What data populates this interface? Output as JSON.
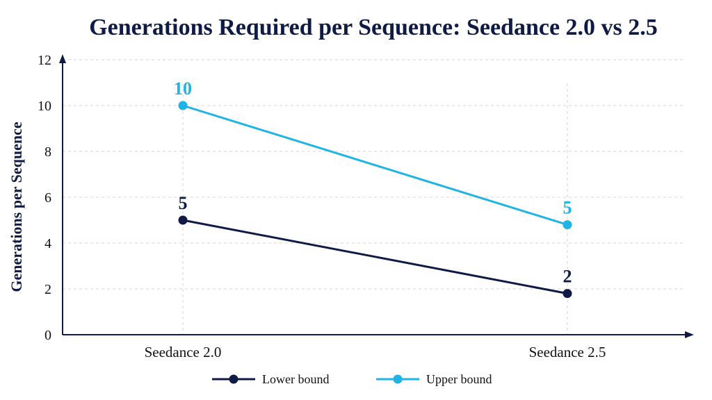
{
  "chart_data": {
    "type": "line",
    "title": "Generations Required per Sequence: Seedance 2.0 vs 2.5",
    "xlabel": "",
    "ylabel": "Generations per Sequence",
    "categories": [
      "Seedance 2.0",
      "Seedance 2.5"
    ],
    "ylim": [
      0,
      12
    ],
    "yticks": [
      0,
      2,
      4,
      6,
      8,
      10,
      12
    ],
    "grid": true,
    "legend_position": "bottom-center",
    "series": [
      {
        "name": "Lower bound",
        "values": [
          5,
          1.8
        ],
        "labels": [
          "5",
          "2"
        ],
        "color": "#0f1a45"
      },
      {
        "name": "Upper bound",
        "values": [
          10,
          4.8
        ],
        "labels": [
          "10",
          "5"
        ],
        "color": "#1eb4e6"
      }
    ]
  }
}
